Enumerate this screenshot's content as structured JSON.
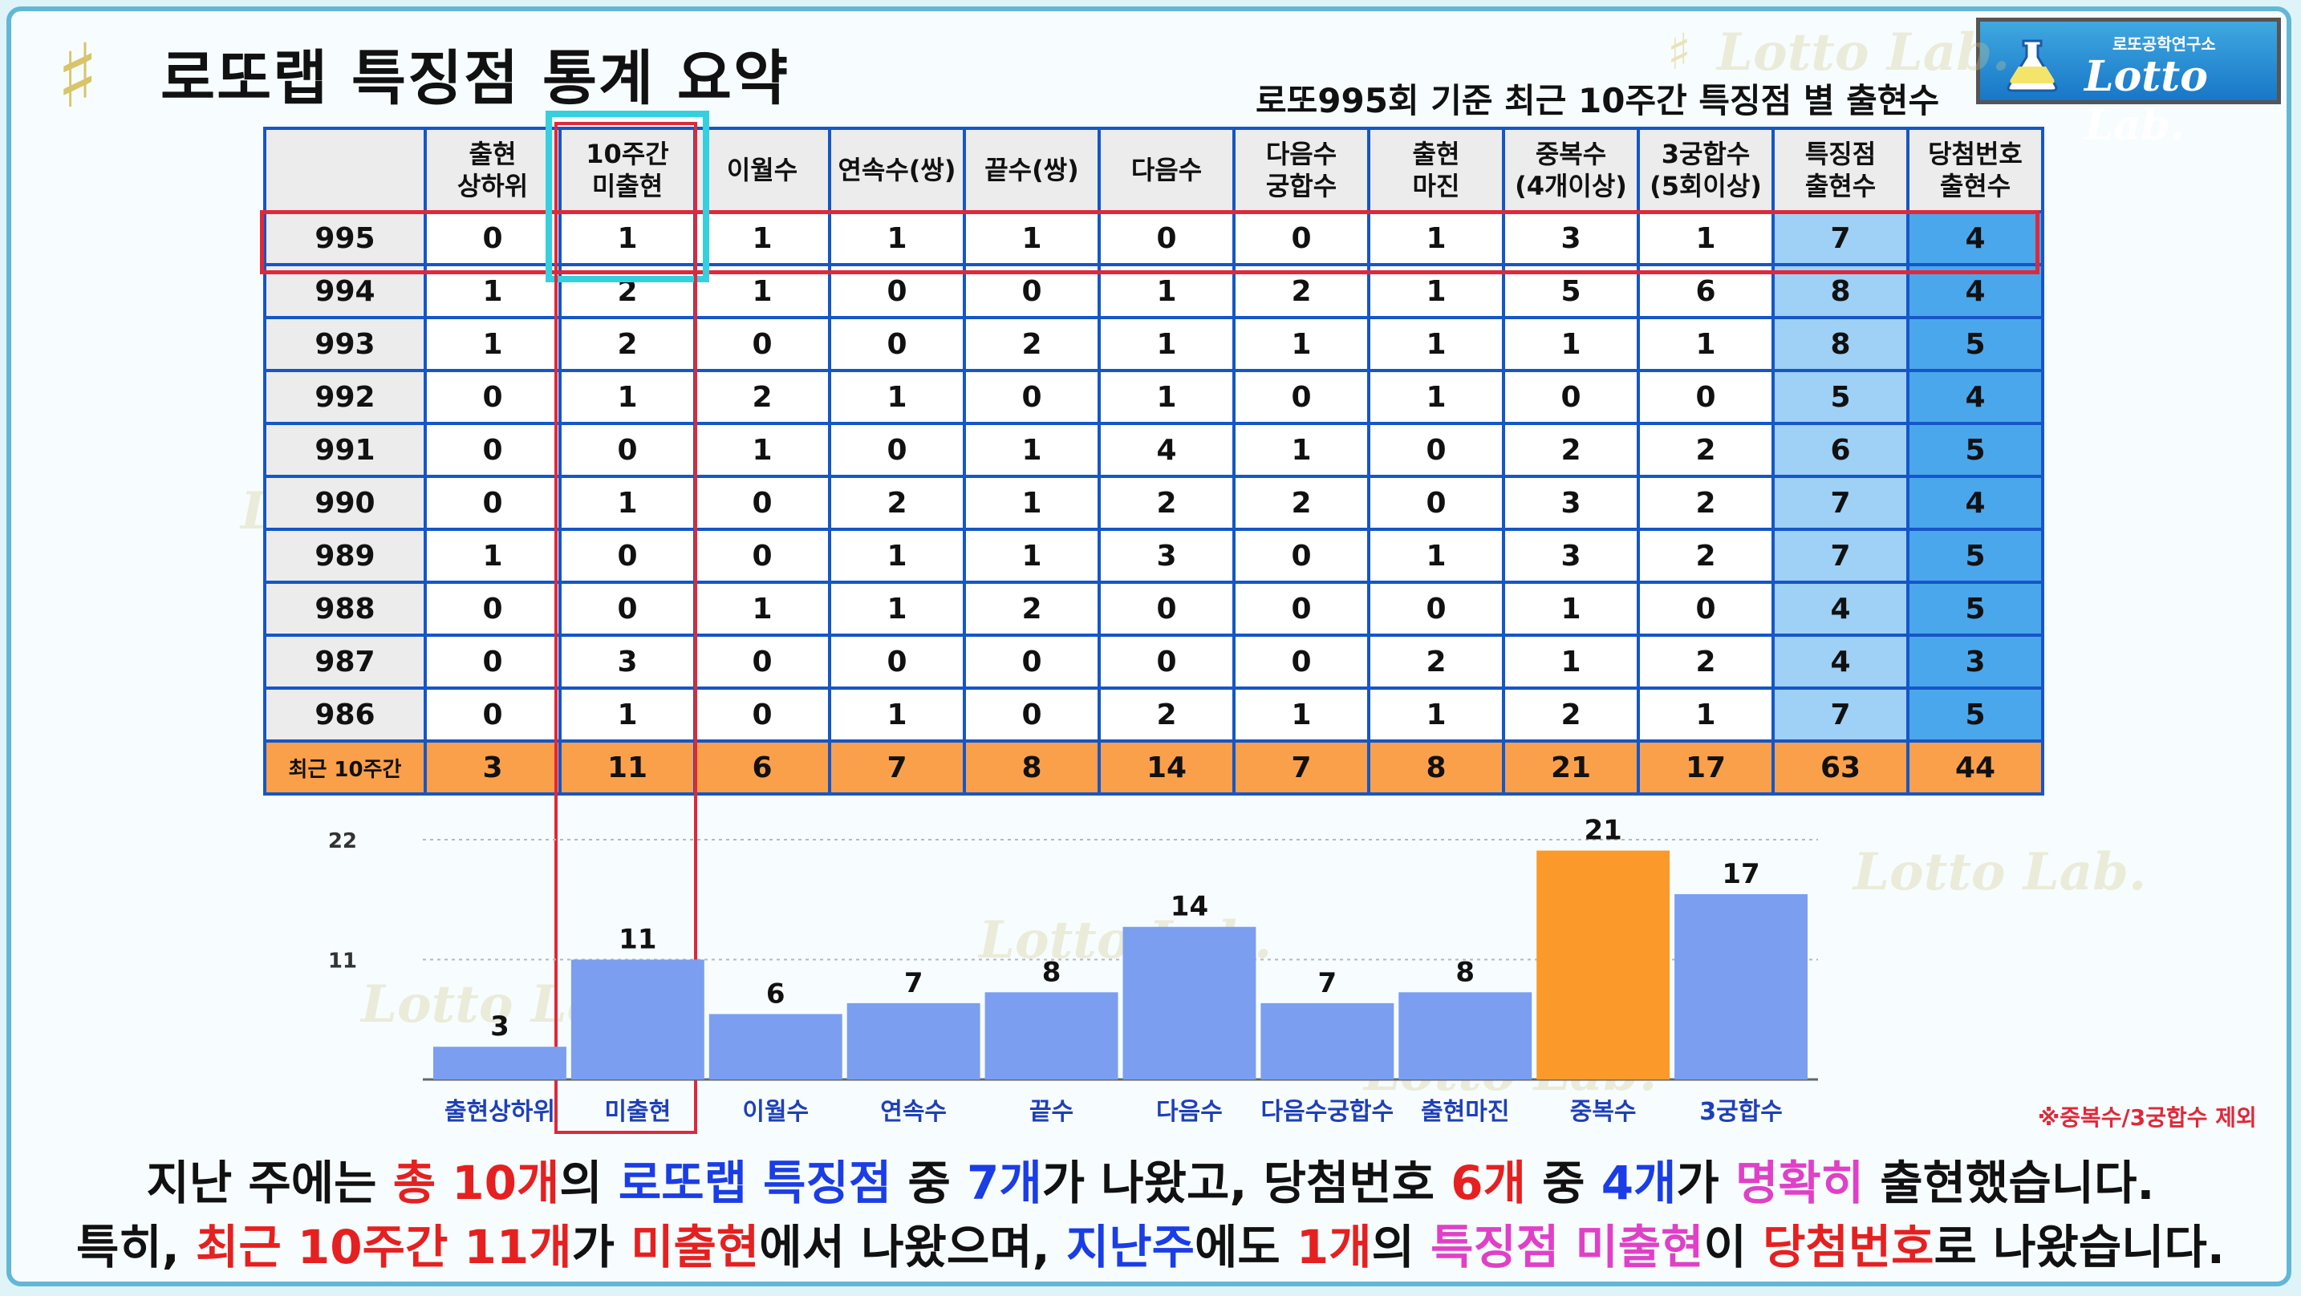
{
  "title": "로또랩 특징점 통계 요약",
  "subtitle": "로또995회 기준 최근 10주간 특징점 별 출현수",
  "logo": {
    "small_text": "로또공학연구소",
    "brand": "Lotto Lab."
  },
  "watermark": "Lotto Lab.",
  "table": {
    "headers": [
      "",
      "출현\n상하위",
      "10주간\n미출현",
      "이월수",
      "연속수(쌍)",
      "끝수(쌍)",
      "다음수",
      "다음수\n궁합수",
      "출현\n마진",
      "중복수\n(4개이상)",
      "3궁합수\n(5회이상)",
      "특징점\n출현수",
      "당첨번호\n출현수"
    ],
    "rows": [
      [
        "995",
        "0",
        "1",
        "1",
        "1",
        "1",
        "0",
        "0",
        "1",
        "3",
        "1",
        "7",
        "4"
      ],
      [
        "994",
        "1",
        "2",
        "1",
        "0",
        "0",
        "1",
        "2",
        "1",
        "5",
        "6",
        "8",
        "4"
      ],
      [
        "993",
        "1",
        "2",
        "0",
        "0",
        "2",
        "1",
        "1",
        "1",
        "1",
        "1",
        "8",
        "5"
      ],
      [
        "992",
        "0",
        "1",
        "2",
        "1",
        "0",
        "1",
        "0",
        "1",
        "0",
        "0",
        "5",
        "4"
      ],
      [
        "991",
        "0",
        "0",
        "1",
        "0",
        "1",
        "4",
        "1",
        "0",
        "2",
        "2",
        "6",
        "5"
      ],
      [
        "990",
        "0",
        "1",
        "0",
        "2",
        "1",
        "2",
        "2",
        "0",
        "3",
        "2",
        "7",
        "4"
      ],
      [
        "989",
        "1",
        "0",
        "0",
        "1",
        "1",
        "3",
        "0",
        "1",
        "3",
        "2",
        "7",
        "5"
      ],
      [
        "988",
        "0",
        "0",
        "1",
        "1",
        "2",
        "0",
        "0",
        "0",
        "1",
        "0",
        "4",
        "5"
      ],
      [
        "987",
        "0",
        "3",
        "0",
        "0",
        "0",
        "0",
        "0",
        "2",
        "1",
        "2",
        "4",
        "3"
      ],
      [
        "986",
        "0",
        "1",
        "0",
        "1",
        "0",
        "2",
        "1",
        "1",
        "2",
        "1",
        "7",
        "5"
      ]
    ],
    "total": [
      "최근 10주간",
      "3",
      "11",
      "6",
      "7",
      "8",
      "14",
      "7",
      "8",
      "21",
      "17",
      "63",
      "44"
    ]
  },
  "chart_data": {
    "type": "bar",
    "categories": [
      "출현상하위",
      "미출현",
      "이월수",
      "연속수",
      "끝수",
      "다음수",
      "다음수궁합수",
      "출현마진",
      "중복수",
      "3궁합수"
    ],
    "values": [
      3,
      11,
      6,
      7,
      8,
      14,
      7,
      8,
      21,
      17
    ],
    "ylim": [
      0,
      22
    ],
    "yticks": [
      11,
      22
    ],
    "grid": true,
    "colors": {
      "default": "#7b9ef0",
      "highlight": "#fb9a2a"
    },
    "highlighted": [
      "중복수"
    ]
  },
  "note": "※중복수/3궁합수 제외",
  "summary": {
    "line1": [
      {
        "t": "지난 주에는 ",
        "c": ""
      },
      {
        "t": "총 10개",
        "c": "r"
      },
      {
        "t": "의 ",
        "c": ""
      },
      {
        "t": "로또랩 특징점",
        "c": "b"
      },
      {
        "t": " 중 ",
        "c": ""
      },
      {
        "t": "7개",
        "c": "b"
      },
      {
        "t": "가 나왔고, 당첨번호 ",
        "c": ""
      },
      {
        "t": "6개",
        "c": "r"
      },
      {
        "t": " 중 ",
        "c": ""
      },
      {
        "t": "4개",
        "c": "b"
      },
      {
        "t": "가 ",
        "c": ""
      },
      {
        "t": "명확히",
        "c": "p"
      },
      {
        "t": " 출현했습니다.",
        "c": ""
      }
    ],
    "line2": [
      {
        "t": "특히, ",
        "c": ""
      },
      {
        "t": "최근 10주간 11개",
        "c": "r"
      },
      {
        "t": "가 ",
        "c": ""
      },
      {
        "t": "미출현",
        "c": "r"
      },
      {
        "t": "에서 나왔으며, ",
        "c": ""
      },
      {
        "t": "지난주",
        "c": "b"
      },
      {
        "t": "에도 ",
        "c": ""
      },
      {
        "t": "1개",
        "c": "r"
      },
      {
        "t": "의 ",
        "c": ""
      },
      {
        "t": "특징점 미출현",
        "c": "p"
      },
      {
        "t": "이 ",
        "c": ""
      },
      {
        "t": "당첨번호",
        "c": "r"
      },
      {
        "t": "로 나왔습니다.",
        "c": ""
      }
    ]
  }
}
